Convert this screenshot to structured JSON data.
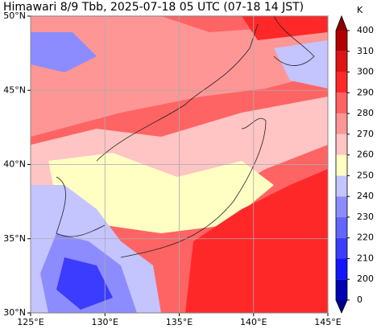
{
  "map": {
    "title": "Himawari 8/9 Tbb, 2025-07-18 05 UTC (07-18 14 JST)",
    "lon_range": [
      125,
      145
    ],
    "lat_range": [
      30,
      50
    ],
    "lon_ticks": [
      {
        "value": 125,
        "label": "125°E"
      },
      {
        "value": 130,
        "label": "130°E"
      },
      {
        "value": 135,
        "label": "135°E"
      },
      {
        "value": 140,
        "label": "140°E"
      },
      {
        "value": 145,
        "label": "145°E"
      }
    ],
    "lat_ticks": [
      {
        "value": 30,
        "label": "30°N"
      },
      {
        "value": 35,
        "label": "35°N"
      },
      {
        "value": 40,
        "label": "40°N"
      },
      {
        "value": 45,
        "label": "45°N"
      },
      {
        "value": 50,
        "label": "50°N"
      }
    ],
    "grid": true,
    "colorbar": {
      "unit": "K",
      "levels": [
        0,
        200,
        210,
        220,
        230,
        240,
        250,
        260,
        270,
        280,
        290,
        300,
        310,
        400
      ],
      "colors": [
        "#0000b4",
        "#1414ff",
        "#3c3cff",
        "#6464ff",
        "#8c8cff",
        "#c4c4ff",
        "#ffffc4",
        "#ffc4c4",
        "#ff9696",
        "#ff6464",
        "#ff2828",
        "#e01414",
        "#b40000"
      ],
      "under_color": "#00008c",
      "over_color": "#8c0000"
    }
  }
}
